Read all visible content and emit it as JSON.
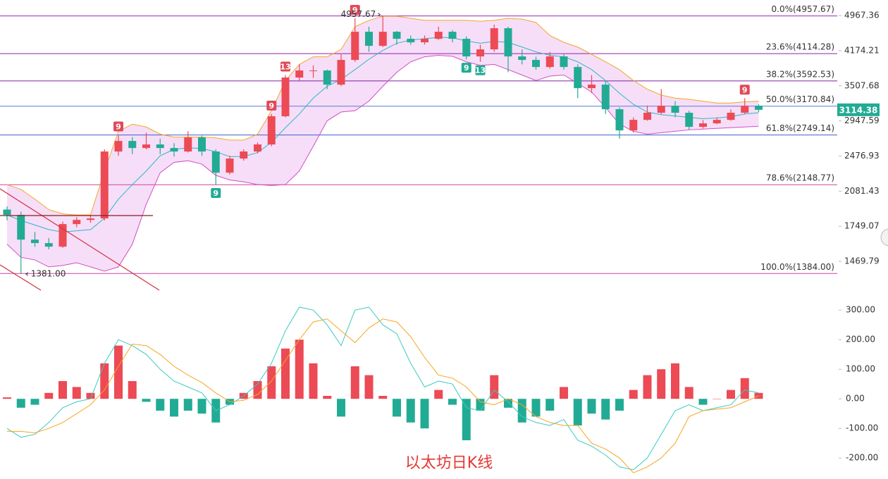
{
  "chart_data": [
    {
      "type": "candlestick",
      "title": "以太坊日K线",
      "log": true,
      "ylim": [
        1283,
        5365
      ],
      "yticks": [
        4967.36,
        4174.21,
        3507.68,
        2947.59,
        2476.93,
        2081.43,
        1749.07,
        1469.79
      ],
      "up_color": "#ec4a55",
      "down_color": "#22ab94",
      "ohlc": [
        [
          1900,
          1930,
          1800,
          1850
        ],
        [
          1850,
          1880,
          1381,
          1637
        ],
        [
          1637,
          1700,
          1580,
          1609
        ],
        [
          1609,
          1650,
          1560,
          1581
        ],
        [
          1581,
          1790,
          1570,
          1768
        ],
        [
          1768,
          1830,
          1740,
          1805
        ],
        [
          1805,
          1850,
          1780,
          1818
        ],
        [
          1818,
          2560,
          1800,
          2533
        ],
        [
          2533,
          2750,
          2480,
          2669
        ],
        [
          2669,
          2720,
          2500,
          2577
        ],
        [
          2577,
          2780,
          2560,
          2623
        ],
        [
          2623,
          2700,
          2500,
          2577
        ],
        [
          2577,
          2640,
          2470,
          2533
        ],
        [
          2533,
          2800,
          2520,
          2716
        ],
        [
          2716,
          2740,
          2480,
          2533
        ],
        [
          2533,
          2560,
          2150,
          2281
        ],
        [
          2281,
          2480,
          2260,
          2446
        ],
        [
          2446,
          2560,
          2420,
          2533
        ],
        [
          2533,
          2650,
          2510,
          2623
        ],
        [
          2623,
          3050,
          2600,
          3016
        ],
        [
          3016,
          3700,
          3000,
          3654
        ],
        [
          3654,
          3900,
          3600,
          3784
        ],
        [
          3784,
          3880,
          3650,
          3784
        ],
        [
          3784,
          3800,
          3450,
          3528
        ],
        [
          3528,
          4100,
          3500,
          3987
        ],
        [
          3987,
          4900,
          3950,
          4584
        ],
        [
          4584,
          4700,
          4150,
          4275
        ],
        [
          4275,
          4957.67,
          4250,
          4584
        ],
        [
          4584,
          4600,
          4300,
          4427
        ],
        [
          4427,
          4500,
          4300,
          4350
        ],
        [
          4350,
          4500,
          4300,
          4427
        ],
        [
          4427,
          4700,
          4400,
          4584
        ],
        [
          4584,
          4620,
          4350,
          4427
        ],
        [
          4427,
          4480,
          4000,
          4057
        ],
        [
          4057,
          4300,
          3950,
          4201
        ],
        [
          4201,
          4750,
          4150,
          4665
        ],
        [
          4665,
          4700,
          3750,
          4057
        ],
        [
          4057,
          4200,
          3900,
          3987
        ],
        [
          3987,
          4050,
          3800,
          3850
        ],
        [
          3850,
          4150,
          3820,
          4057
        ],
        [
          4057,
          4100,
          3800,
          3850
        ],
        [
          3850,
          3900,
          3300,
          3467
        ],
        [
          3467,
          3700,
          3380,
          3528
        ],
        [
          3528,
          3600,
          3050,
          3123
        ],
        [
          3123,
          3150,
          2700,
          2812
        ],
        [
          2812,
          3000,
          2780,
          2963
        ],
        [
          2963,
          3180,
          2950,
          3069
        ],
        [
          3069,
          3450,
          3050,
          3178
        ],
        [
          3178,
          3250,
          3000,
          3069
        ],
        [
          3069,
          3100,
          2820,
          2862
        ],
        [
          2862,
          2960,
          2840,
          2912
        ],
        [
          2912,
          3000,
          2900,
          2963
        ],
        [
          2963,
          3120,
          2950,
          3069
        ],
        [
          3069,
          3300,
          3050,
          3178
        ],
        [
          3178,
          3200,
          3080,
          3114.38
        ]
      ],
      "bollinger": {
        "upper": [
          2150,
          2100,
          2000,
          1900,
          1860,
          1850,
          1850,
          2300,
          2800,
          2900,
          2860,
          2760,
          2720,
          2720,
          2720,
          2710,
          2680,
          2680,
          2760,
          3100,
          3600,
          3900,
          4050,
          4050,
          4200,
          4700,
          4850,
          4950,
          4950,
          4900,
          4850,
          4850,
          4850,
          4850,
          4830,
          4850,
          4900,
          4880,
          4800,
          4500,
          4350,
          4250,
          4100,
          3950,
          3800,
          3600,
          3450,
          3350,
          3300,
          3280,
          3250,
          3220,
          3220,
          3240,
          3250
        ],
        "middle": [
          1850,
          1800,
          1760,
          1720,
          1700,
          1710,
          1720,
          1820,
          2000,
          2150,
          2300,
          2480,
          2560,
          2580,
          2570,
          2530,
          2470,
          2470,
          2520,
          2650,
          2850,
          3050,
          3300,
          3500,
          3620,
          3800,
          4000,
          4180,
          4330,
          4400,
          4430,
          4460,
          4450,
          4380,
          4330,
          4370,
          4350,
          4250,
          4150,
          4080,
          4050,
          3950,
          3800,
          3600,
          3380,
          3200,
          3080,
          3040,
          3020,
          3000,
          2980,
          2990,
          3010,
          3050,
          3070
        ],
        "lower": [
          1600,
          1500,
          1480,
          1430,
          1440,
          1460,
          1430,
          1400,
          1430,
          1600,
          1950,
          2280,
          2400,
          2420,
          2380,
          2250,
          2200,
          2180,
          2150,
          2140,
          2150,
          2300,
          2600,
          2950,
          3080,
          3100,
          3250,
          3500,
          3750,
          3950,
          4050,
          4080,
          4060,
          3950,
          3880,
          3900,
          3800,
          3700,
          3600,
          3680,
          3700,
          3550,
          3400,
          3150,
          2900,
          2800,
          2760,
          2780,
          2800,
          2820,
          2830,
          2840,
          2850,
          2860,
          2870
        ],
        "upper_color": "#f5a623",
        "middle_color": "#2bb7c9",
        "lower_color": "#d24fc2",
        "fill": "#f6def8"
      },
      "fib_levels": [
        {
          "value": 4957.67,
          "label": "0.0%(4957.67)",
          "color": "#9c27b0"
        },
        {
          "value": 4114.28,
          "label": "23.6%(4114.28)",
          "color": "#8e24aa"
        },
        {
          "value": 3592.53,
          "label": "38.2%(3592.53)",
          "color": "#7b1fa2"
        },
        {
          "value": 3170.84,
          "label": "50.0%(3170.84)",
          "color": "#5c7bd6"
        },
        {
          "value": 2749.14,
          "label": "61.8%(2749.14)",
          "color": "#3f5fc7"
        },
        {
          "value": 2148.77,
          "label": "78.6%(2148.77)",
          "color": "#d040a0"
        },
        {
          "value": 1384.0,
          "label": "100.0%(1384.00)",
          "color": "#d040a0"
        }
      ],
      "high_label": 4957.67,
      "low_label": {
        "value": 1381,
        "label": "1381.00"
      },
      "last_price": 3114.38,
      "last_color": "#22ab94",
      "td_sell": [
        null,
        null,
        null,
        null,
        null,
        null,
        null,
        null,
        9,
        null,
        null,
        null,
        null,
        null,
        null,
        null,
        null,
        null,
        null,
        9,
        13,
        null,
        null,
        null,
        null,
        9,
        null,
        null,
        null,
        null,
        null,
        null,
        null,
        null,
        null,
        null,
        null,
        null,
        null,
        null,
        null,
        null,
        null,
        null,
        null,
        null,
        null,
        null,
        null,
        null,
        null,
        null,
        null,
        9,
        null
      ],
      "td_buy": [
        null,
        null,
        null,
        null,
        null,
        null,
        null,
        null,
        null,
        null,
        null,
        null,
        null,
        null,
        null,
        9,
        null,
        null,
        null,
        null,
        null,
        null,
        null,
        null,
        null,
        null,
        null,
        null,
        null,
        null,
        null,
        null,
        null,
        9,
        13,
        null,
        null,
        null,
        null,
        null,
        null,
        null,
        null,
        null,
        null,
        null,
        null,
        null,
        null,
        null,
        null,
        null,
        null,
        null,
        null
      ],
      "td_sell_color": "#e04a59",
      "td_buy_color": "#22ab94"
    },
    {
      "type": "macd",
      "ylim": [
        -271,
        360
      ],
      "yticks": [
        {
          "value": 300,
          "label": "300.00"
        },
        {
          "value": 200,
          "label": "200.00"
        },
        {
          "value": 100,
          "label": "100.00"
        },
        {
          "value": 0,
          "label": "0.00"
        },
        {
          "value": -100,
          "label": "-100.00"
        },
        {
          "value": -200,
          "label": "-200.00"
        }
      ],
      "histogram": [
        5,
        -30,
        -20,
        20,
        60,
        40,
        20,
        120,
        180,
        60,
        -10,
        -40,
        -60,
        -40,
        -50,
        -80,
        -20,
        20,
        60,
        110,
        170,
        200,
        120,
        10,
        -60,
        110,
        80,
        10,
        -60,
        -80,
        -100,
        30,
        -20,
        -140,
        -40,
        80,
        -30,
        -80,
        -60,
        -40,
        40,
        -90,
        -50,
        -70,
        -40,
        30,
        80,
        100,
        120,
        40,
        -20,
        0,
        30,
        70,
        20
      ],
      "dif": [
        -100,
        -130,
        -120,
        -80,
        -30,
        -10,
        0,
        120,
        200,
        180,
        150,
        100,
        60,
        40,
        20,
        -40,
        -20,
        10,
        50,
        120,
        230,
        310,
        300,
        250,
        180,
        300,
        310,
        250,
        220,
        120,
        40,
        60,
        50,
        -30,
        -40,
        30,
        -10,
        -60,
        -80,
        -90,
        -70,
        -140,
        -160,
        -190,
        -230,
        -240,
        -200,
        -120,
        -40,
        -20,
        -40,
        -30,
        -20,
        30,
        20
      ],
      "dea": [
        -110,
        -110,
        -115,
        -100,
        -80,
        -50,
        -20,
        30,
        110,
        185,
        180,
        150,
        110,
        80,
        55,
        20,
        -10,
        -5,
        15,
        60,
        130,
        200,
        260,
        270,
        230,
        190,
        240,
        270,
        260,
        210,
        140,
        80,
        70,
        40,
        -10,
        -20,
        0,
        -20,
        -60,
        -80,
        -90,
        -90,
        -150,
        -170,
        -200,
        -250,
        -230,
        -200,
        -150,
        -60,
        -40,
        -35,
        -30,
        -10,
        10
      ],
      "pos_color": "#ec4a55",
      "neg_color": "#22ab94",
      "dif_color": "#3cc9c0",
      "dea_color": "#f5a623"
    }
  ]
}
